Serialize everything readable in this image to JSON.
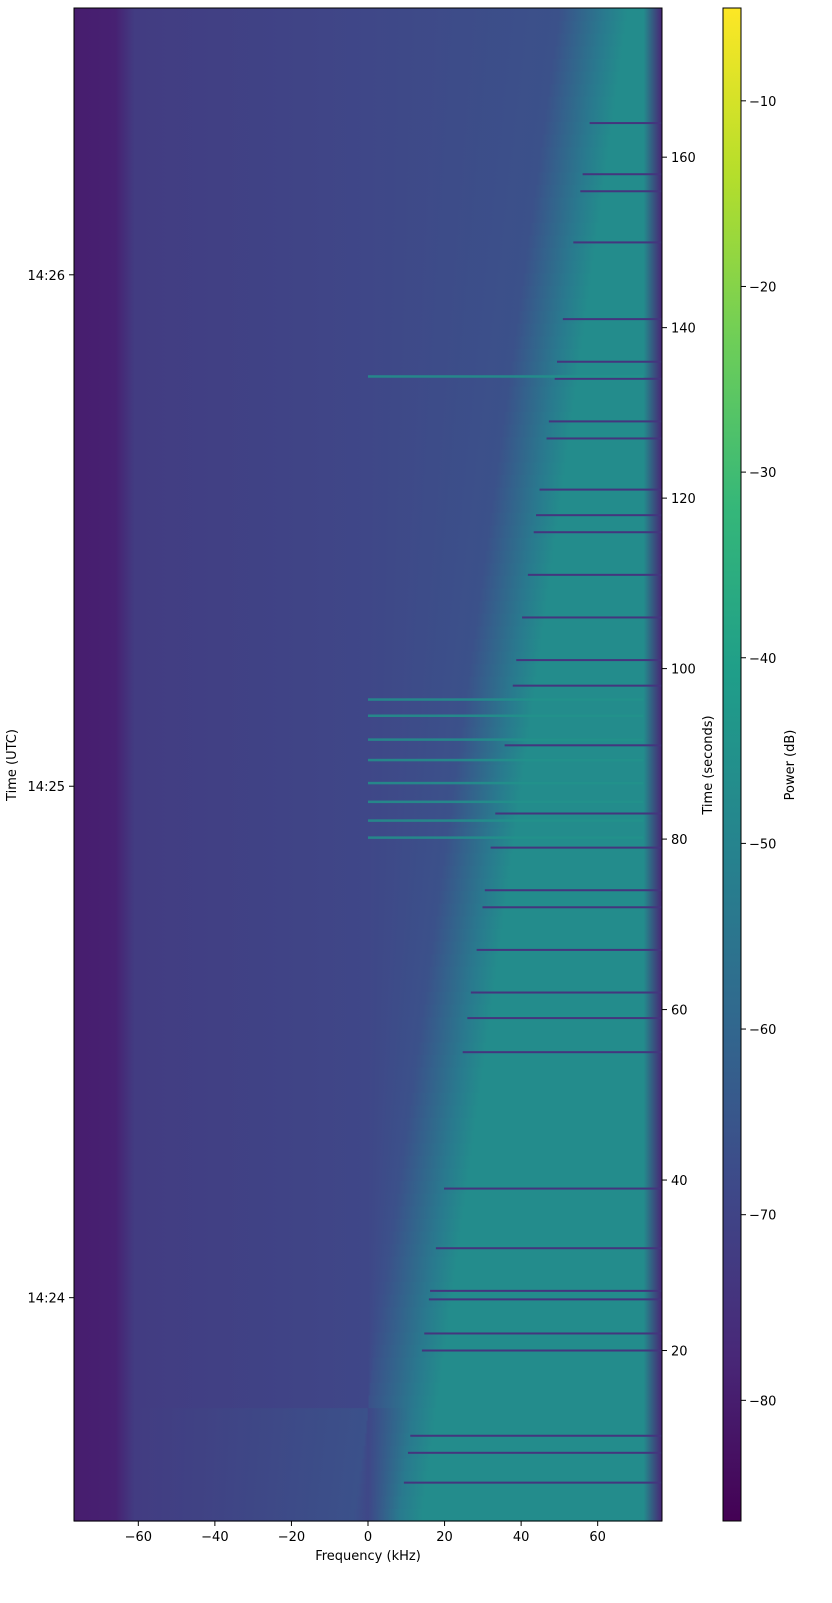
{
  "chart_data": {
    "type": "heatmap",
    "title": "",
    "xlabel": "Frequency (kHz)",
    "ylabel_left": "Time (UTC)",
    "ylabel_right": "Time (seconds)",
    "colorbar_label": "Power (dB)",
    "colormap": "viridis",
    "xlim": [
      -76.8,
      76.8
    ],
    "ylim_seconds": [
      0,
      177.5
    ],
    "clim": [
      -86.5,
      -5
    ],
    "x_ticks": [
      -60,
      -40,
      -20,
      0,
      20,
      40,
      60
    ],
    "x_tick_labels": [
      "−60",
      "−40",
      "−20",
      "0",
      "20",
      "40",
      "60"
    ],
    "right_ticks": [
      20,
      40,
      60,
      80,
      100,
      120,
      140,
      160
    ],
    "right_tick_labels": [
      "20",
      "40",
      "60",
      "80",
      "100",
      "120",
      "140",
      "160"
    ],
    "left_ticks_seconds": [
      26.2,
      86.2,
      146.2
    ],
    "left_tick_labels": [
      "14:24",
      "14:25",
      "14:26"
    ],
    "colorbar_ticks": [
      -80,
      -70,
      -60,
      -50,
      -40,
      -30,
      -20,
      -10
    ],
    "colorbar_tick_labels": [
      "−80",
      "−70",
      "−60",
      "−50",
      "−40",
      "−30",
      "−20",
      "−10"
    ],
    "grid": false,
    "profile": {
      "noise_floor_db": -66,
      "low_band_db": -80,
      "low_band_khz": [
        -76.8,
        -66
      ],
      "signal_db": -47,
      "signal_edge_khz_at_start": 8,
      "signal_edge_khz_at_end": 62,
      "signal_upper_khz": 72
    },
    "dropout_lines_seconds": [
      4.5,
      8,
      10,
      20,
      22,
      26,
      27,
      32,
      39,
      55,
      59,
      62,
      67,
      72,
      74,
      79,
      83,
      91,
      98,
      101,
      106,
      111,
      116,
      118,
      121,
      127,
      129,
      134,
      136,
      141,
      150,
      156,
      158,
      164
    ],
    "bright_lines_seconds": [
      80.2,
      82.2,
      84.4,
      86.6,
      89.3,
      91.7,
      94.5,
      96.4,
      134.3
    ]
  }
}
